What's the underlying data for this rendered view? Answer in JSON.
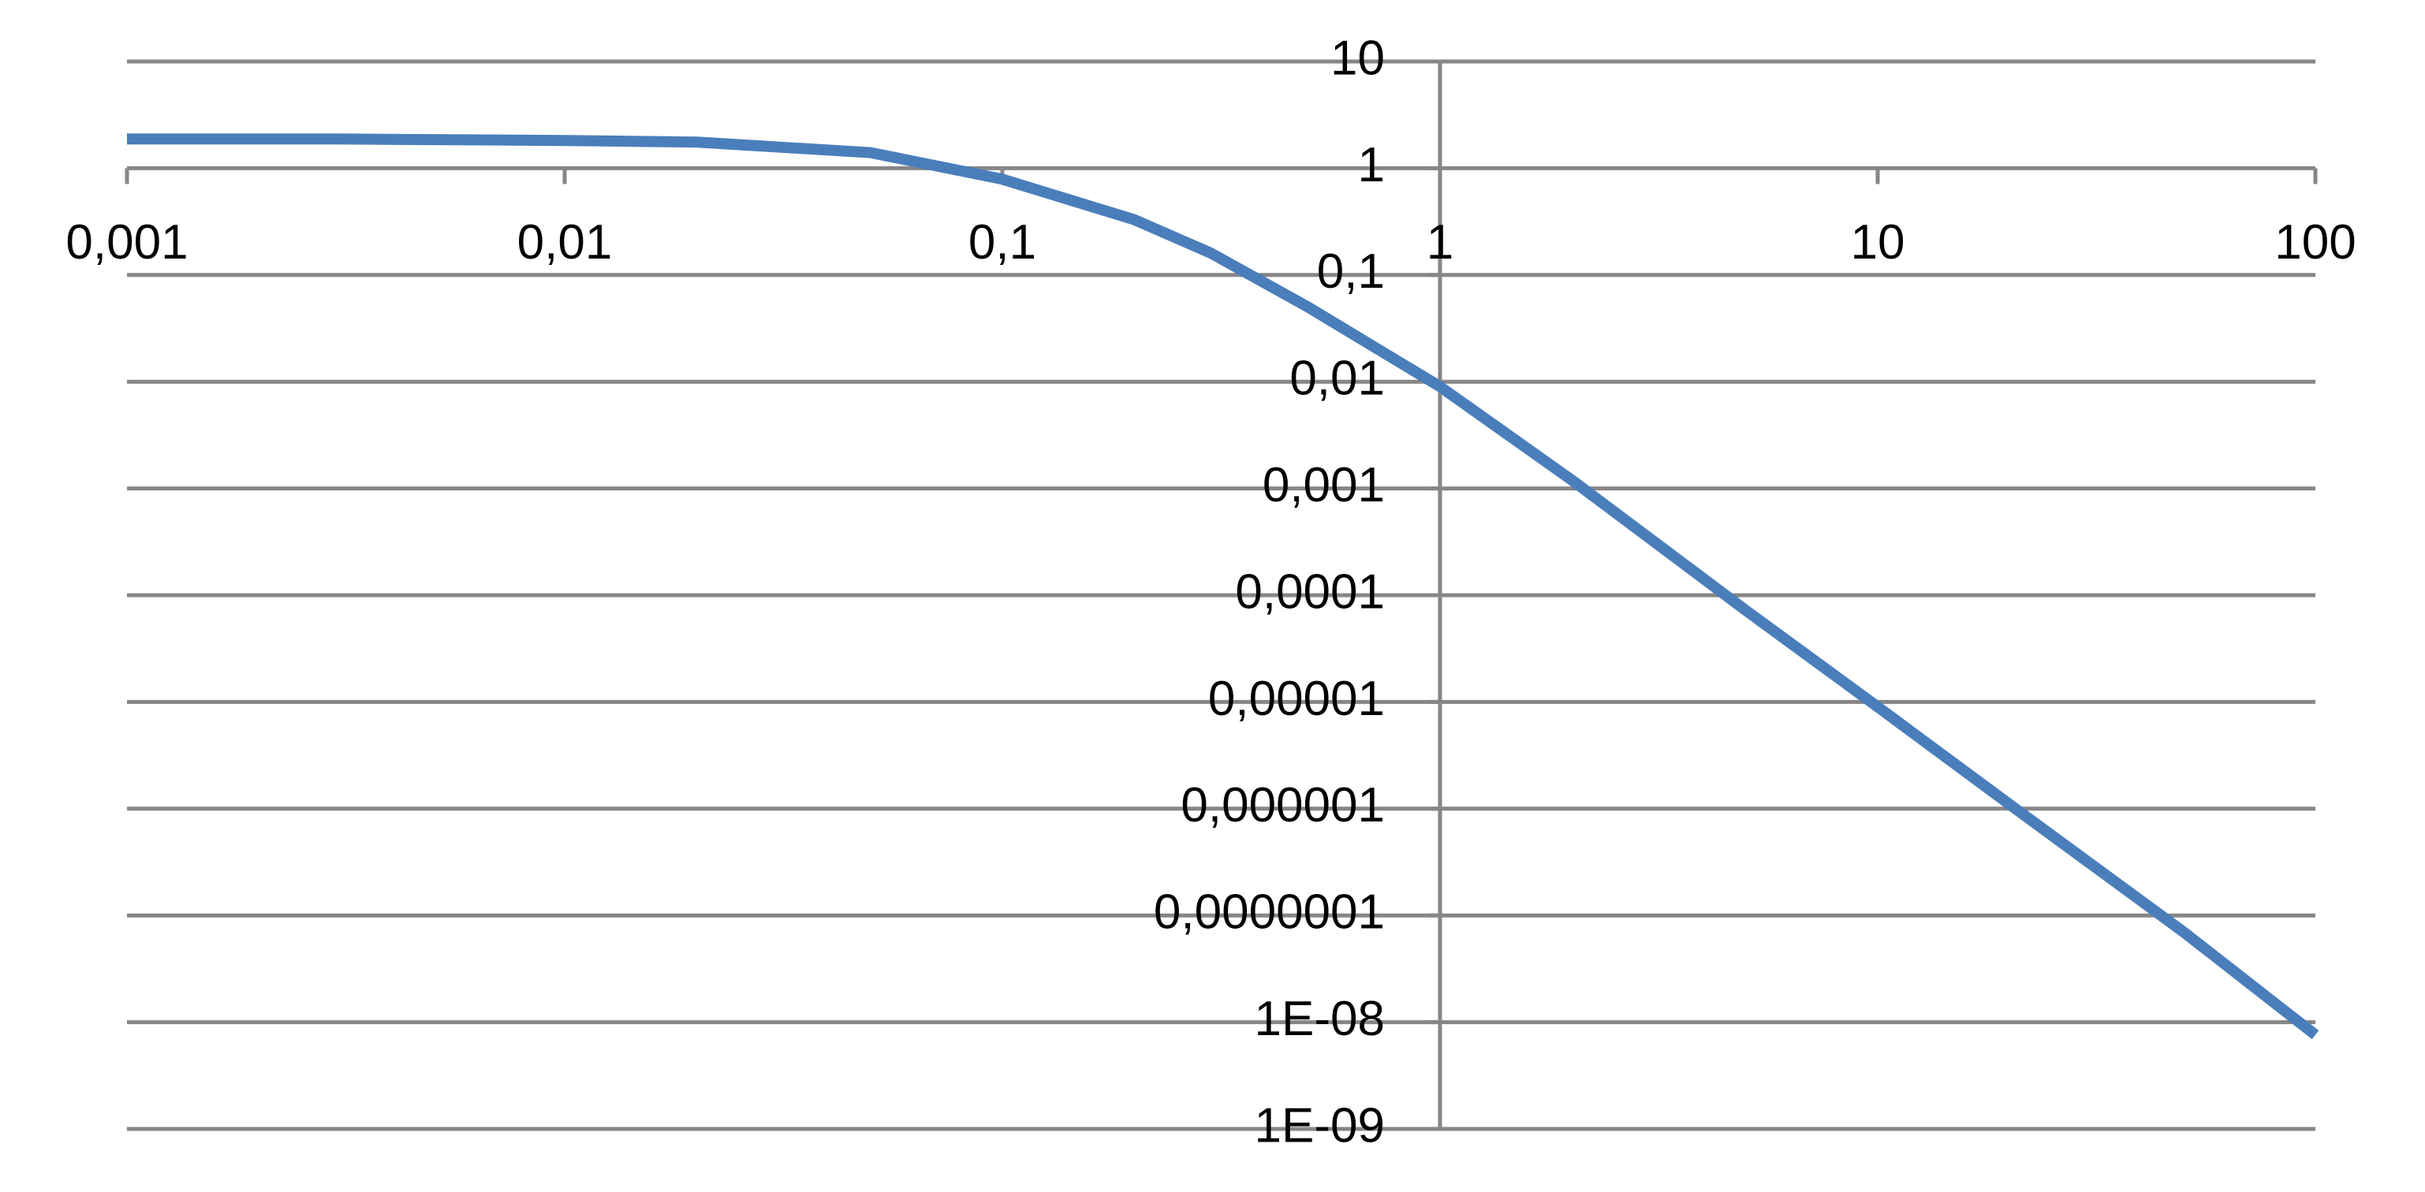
{
  "chart_data": {
    "type": "line",
    "x": [
      0.001,
      0.003,
      0.01,
      0.02,
      0.05,
      0.1,
      0.2,
      0.3,
      0.5,
      1,
      2,
      5,
      10,
      20,
      50,
      100
    ],
    "values": [
      1.88,
      1.88,
      1.82,
      1.76,
      1.4,
      0.79,
      0.33,
      0.16,
      0.05,
      0.009,
      0.0012,
      7.2e-05,
      9e-06,
      1.1e-06,
      7e-08,
      7.6e-09
    ],
    "color": "#4a7ebb",
    "xscale": "log",
    "yscale": "log",
    "xlim": [
      0.001,
      100
    ],
    "xticks": [
      {
        "value": 0.001,
        "label": "0,001"
      },
      {
        "value": 0.01,
        "label": "0,01"
      },
      {
        "value": 0.1,
        "label": "0,1"
      },
      1,
      10,
      100
    ],
    "ylim": [
      1e-09,
      10
    ],
    "yticks": [
      10,
      1,
      {
        "value": 0.1,
        "label": "0,1"
      },
      {
        "value": 0.01,
        "label": "0,01"
      },
      {
        "value": 0.001,
        "label": "0,001"
      },
      {
        "value": 0.0001,
        "label": "0,0001"
      },
      {
        "value": 1e-05,
        "label": "0,00001"
      },
      {
        "value": 1e-06,
        "label": "0,000001"
      },
      {
        "value": 1e-07,
        "label": "0,0000001"
      },
      {
        "value": 1e-08,
        "label": "1E-08"
      },
      {
        "value": 1e-09,
        "label": "1E-09"
      }
    ],
    "x_axis_crosses_y_at": 1,
    "y_axis_crosses_x_at": 1,
    "grid": true
  }
}
